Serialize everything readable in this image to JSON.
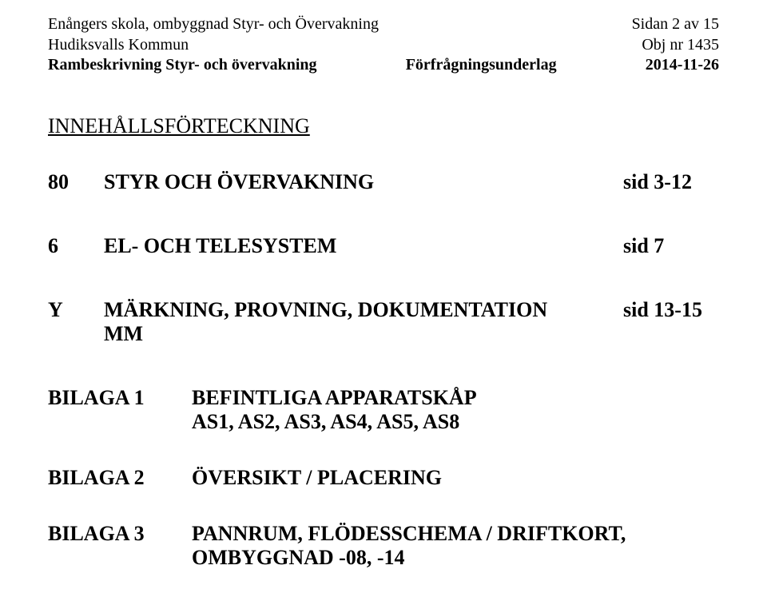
{
  "header": {
    "line1_left": "Enångers skola, ombyggnad Styr- och Övervakning",
    "line1_right": "Sidan 2 av 15",
    "line2_left": "Hudiksvalls Kommun",
    "line2_right": "Obj nr 1435",
    "line3_left": "Rambeskrivning Styr- och övervakning",
    "line3_mid": "Förfrågningsunderlag",
    "line3_right": "2014-11-26"
  },
  "title": "INNEHÅLLSFÖRTECKNING",
  "toc": [
    {
      "num": "80",
      "label": "STYR OCH ÖVERVAKNING",
      "page": "sid 3-12"
    },
    {
      "num": "6",
      "label": "EL- OCH TELESYSTEM",
      "page": "sid 7"
    },
    {
      "num": "Y",
      "label": "MÄRKNING, PROVNING, DOKUMENTATION",
      "label2": "MM",
      "page": "sid 13-15"
    }
  ],
  "appendix": [
    {
      "label": "BILAGA 1",
      "desc_l1": "BEFINTLIGA APPARATSKÅP",
      "desc_l2": "AS1, AS2, AS3, AS4, AS5, AS8"
    },
    {
      "label": "BILAGA 2",
      "desc_l1": "ÖVERSIKT / PLACERING"
    },
    {
      "label": "BILAGA 3",
      "desc_l1": "PANNRUM, FLÖDESSCHEMA / DRIFTKORT,",
      "desc_l2": "OMBYGGNAD -08, -14"
    }
  ]
}
